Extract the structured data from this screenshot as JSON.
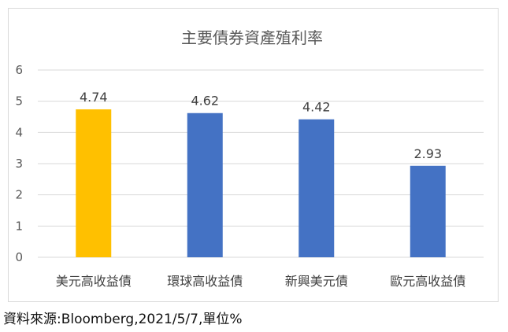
{
  "chart_data": {
    "type": "bar",
    "title": "主要債券資產殖利率",
    "categories": [
      "美元高收益債",
      "環球高收益債",
      "新興美元債",
      "歐元高收益債"
    ],
    "values": [
      4.74,
      4.62,
      4.42,
      2.93
    ],
    "data_labels": [
      "4.74",
      "4.62",
      "4.42",
      "2.93"
    ],
    "bar_colors": [
      "#FFC000",
      "#4472C4",
      "#4472C4",
      "#4472C4"
    ],
    "ylim": [
      0,
      6
    ],
    "yticks": [
      "0",
      "1",
      "2",
      "3",
      "4",
      "5",
      "6"
    ],
    "grid": true,
    "xlabel": "",
    "ylabel": ""
  },
  "source_note": "資料來源:Bloomberg,2021/5/7,單位%"
}
